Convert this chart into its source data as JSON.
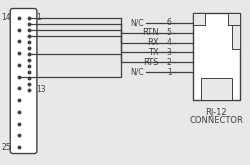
{
  "bg_color": "#e8e8e8",
  "line_color": "#404040",
  "signal_labels": [
    "RTN",
    "RX",
    "TX",
    "RTS"
  ],
  "rj_pins_connected": [
    5,
    4,
    3,
    2
  ],
  "nc_pins": [
    6,
    1
  ],
  "rj12_label_line1": "RJ-12",
  "rj12_label_line2": "CONNECTOR",
  "label_fontsize": 6.0,
  "small_fontsize": 5.5,
  "pin_fontsize": 5.5
}
